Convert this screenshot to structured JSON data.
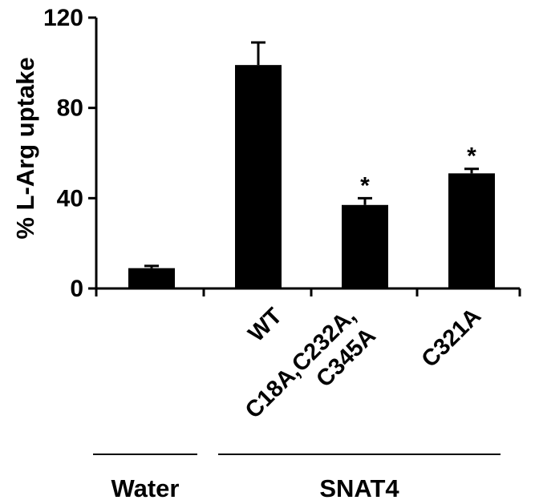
{
  "chart_data": {
    "type": "bar",
    "title": "",
    "xlabel": "",
    "ylabel": "% L-Arg uptake",
    "ylim": [
      0,
      120
    ],
    "yticks": [
      0,
      40,
      80,
      120
    ],
    "grid": false,
    "legend": "none",
    "categories": [
      {
        "lines": [
          ""
        ]
      },
      {
        "lines": [
          "WT"
        ]
      },
      {
        "lines": [
          "C18A,C232A,",
          "C345A"
        ]
      },
      {
        "lines": [
          "C321A"
        ]
      }
    ],
    "values": [
      9,
      99,
      37,
      51
    ],
    "errors": [
      1,
      10,
      3,
      2
    ],
    "significance": [
      "",
      "",
      "*",
      "*"
    ],
    "groups": [
      {
        "label": "Water",
        "categories": [
          0
        ]
      },
      {
        "label": "SNAT4",
        "categories": [
          1,
          2,
          3
        ]
      }
    ],
    "bar_color": "#000000"
  }
}
